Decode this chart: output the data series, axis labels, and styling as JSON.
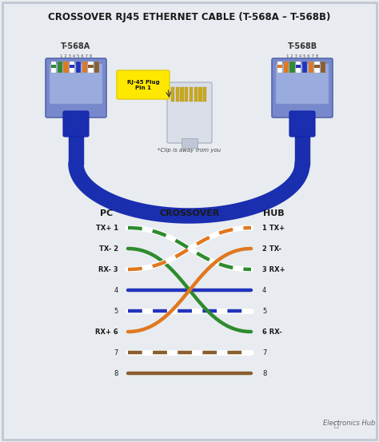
{
  "title": "CROSSOVER RJ45 ETHERNET CABLE (T-568A – T-568B)",
  "bg_color": "#e8ecf0",
  "label_left": "T-568A",
  "label_right": "T-568B",
  "cable_color": "#1a2eb0",
  "crossover_labels_left": [
    "TX+ 1",
    "TX- 2",
    "RX- 3",
    "4",
    "5",
    "RX+ 6",
    "7",
    "8"
  ],
  "crossover_labels_right": [
    "1 TX+",
    "2 TX-",
    "3 RX+",
    "4",
    "5",
    "6 RX-",
    "7",
    "8"
  ],
  "pc_label": "PC",
  "hub_label": "HUB",
  "crossover_label": "CROSSOVER",
  "electronics_hub_text": "Electronics Hub",
  "rj45_label": "RJ-45 Plug\nPin 1",
  "clip_label": "*Clip is away from you",
  "crossover_wires": [
    [
      0,
      2,
      "#2e8b2e",
      true
    ],
    [
      1,
      5,
      "#2e8b2e",
      false
    ],
    [
      2,
      0,
      "#e07820",
      true
    ],
    [
      3,
      3,
      "#2233bb",
      false
    ],
    [
      4,
      4,
      "#2233bb",
      true
    ],
    [
      5,
      1,
      "#e07820",
      false
    ],
    [
      6,
      6,
      "#8B5e2e",
      true
    ],
    [
      7,
      7,
      "#8B5e2e",
      false
    ]
  ],
  "pin_colors_568a": [
    "#ffffff",
    "#2e8b2e",
    "#e07820",
    "#ffffff",
    "#2233bb",
    "#e07820",
    "#ffffff",
    "#8B5e2e"
  ],
  "pin_stripe_568a": [
    "#2e8b2e",
    null,
    "#e07820",
    "#2233bb",
    null,
    null,
    "#8B5e2e",
    null
  ],
  "pin_colors_568b": [
    "#ffffff",
    "#e07820",
    "#2e8b2e",
    "#ffffff",
    "#2233bb",
    "#e07820",
    "#ffffff",
    "#8B5e2e"
  ],
  "pin_stripe_568b": [
    "#e07820",
    null,
    "#2e8b2e",
    "#2233bb",
    null,
    null,
    "#8B5e2e",
    null
  ]
}
